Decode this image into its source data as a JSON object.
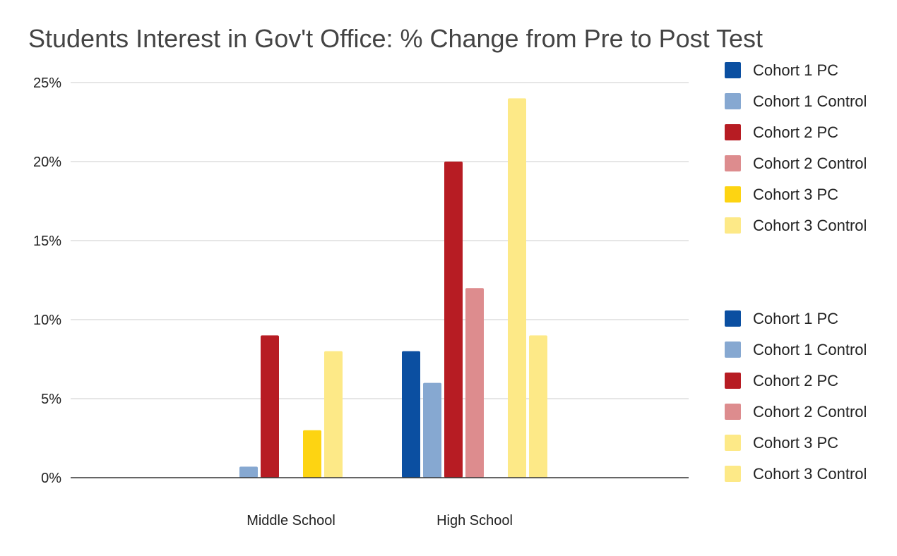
{
  "chart_data": {
    "type": "bar",
    "title": "Students Interest in Gov't Office: % Change from Pre to Post Test",
    "xlabel": "",
    "ylabel": "",
    "categories": [
      "Middle School",
      "High School"
    ],
    "ylim": [
      0,
      25
    ],
    "yticks": [
      0,
      5,
      10,
      15,
      20,
      25
    ],
    "ytick_labels": [
      "0%",
      "5%",
      "10%",
      "15%",
      "20%",
      "25%"
    ],
    "grid": true,
    "legend_position": "right",
    "series": [
      {
        "name": "Cohort 1 PC",
        "values": [
          0,
          8
        ],
        "color": "#0b4fa1"
      },
      {
        "name": "Cohort 1 Control",
        "values": [
          0.7,
          6
        ],
        "color": "#86a8d1"
      },
      {
        "name": "Cohort 2 PC",
        "values": [
          9,
          20
        ],
        "color": "#b71c23"
      },
      {
        "name": "Cohort 2 Control",
        "values": [
          0,
          12
        ],
        "color": "#dd8c8e"
      },
      {
        "name": "Cohort 3 PC",
        "values": [
          3,
          0
        ],
        "color": "#fdd412"
      },
      {
        "name": "Cohort 3 Control",
        "values": [
          8,
          24
        ],
        "color": "#fde987"
      },
      {
        "name": "",
        "values": [
          0,
          9
        ],
        "color": "#fde987"
      }
    ],
    "legend": [
      {
        "label": "Cohort 1 PC",
        "color": "#0b4fa1"
      },
      {
        "label": "Cohort 1 Control",
        "color": "#86a8d1"
      },
      {
        "label": "Cohort 2 PC",
        "color": "#b71c23"
      },
      {
        "label": "Cohort 2 Control",
        "color": "#dd8c8e"
      },
      {
        "label": "Cohort 3 PC",
        "color": "#fdd412"
      },
      {
        "label": "Cohort 3 Control",
        "color": "#fde987"
      },
      {
        "label": "Cohort 1 PC",
        "color": "#0b4fa1"
      },
      {
        "label": "Cohort 1 Control",
        "color": "#86a8d1"
      },
      {
        "label": "Cohort 2 PC",
        "color": "#b71c23"
      },
      {
        "label": "Cohort 2 Control",
        "color": "#dd8c8e"
      },
      {
        "label": "Cohort 3 PC",
        "color": "#fde987"
      },
      {
        "label": "Cohort 3 Control",
        "color": "#fde987"
      }
    ]
  }
}
